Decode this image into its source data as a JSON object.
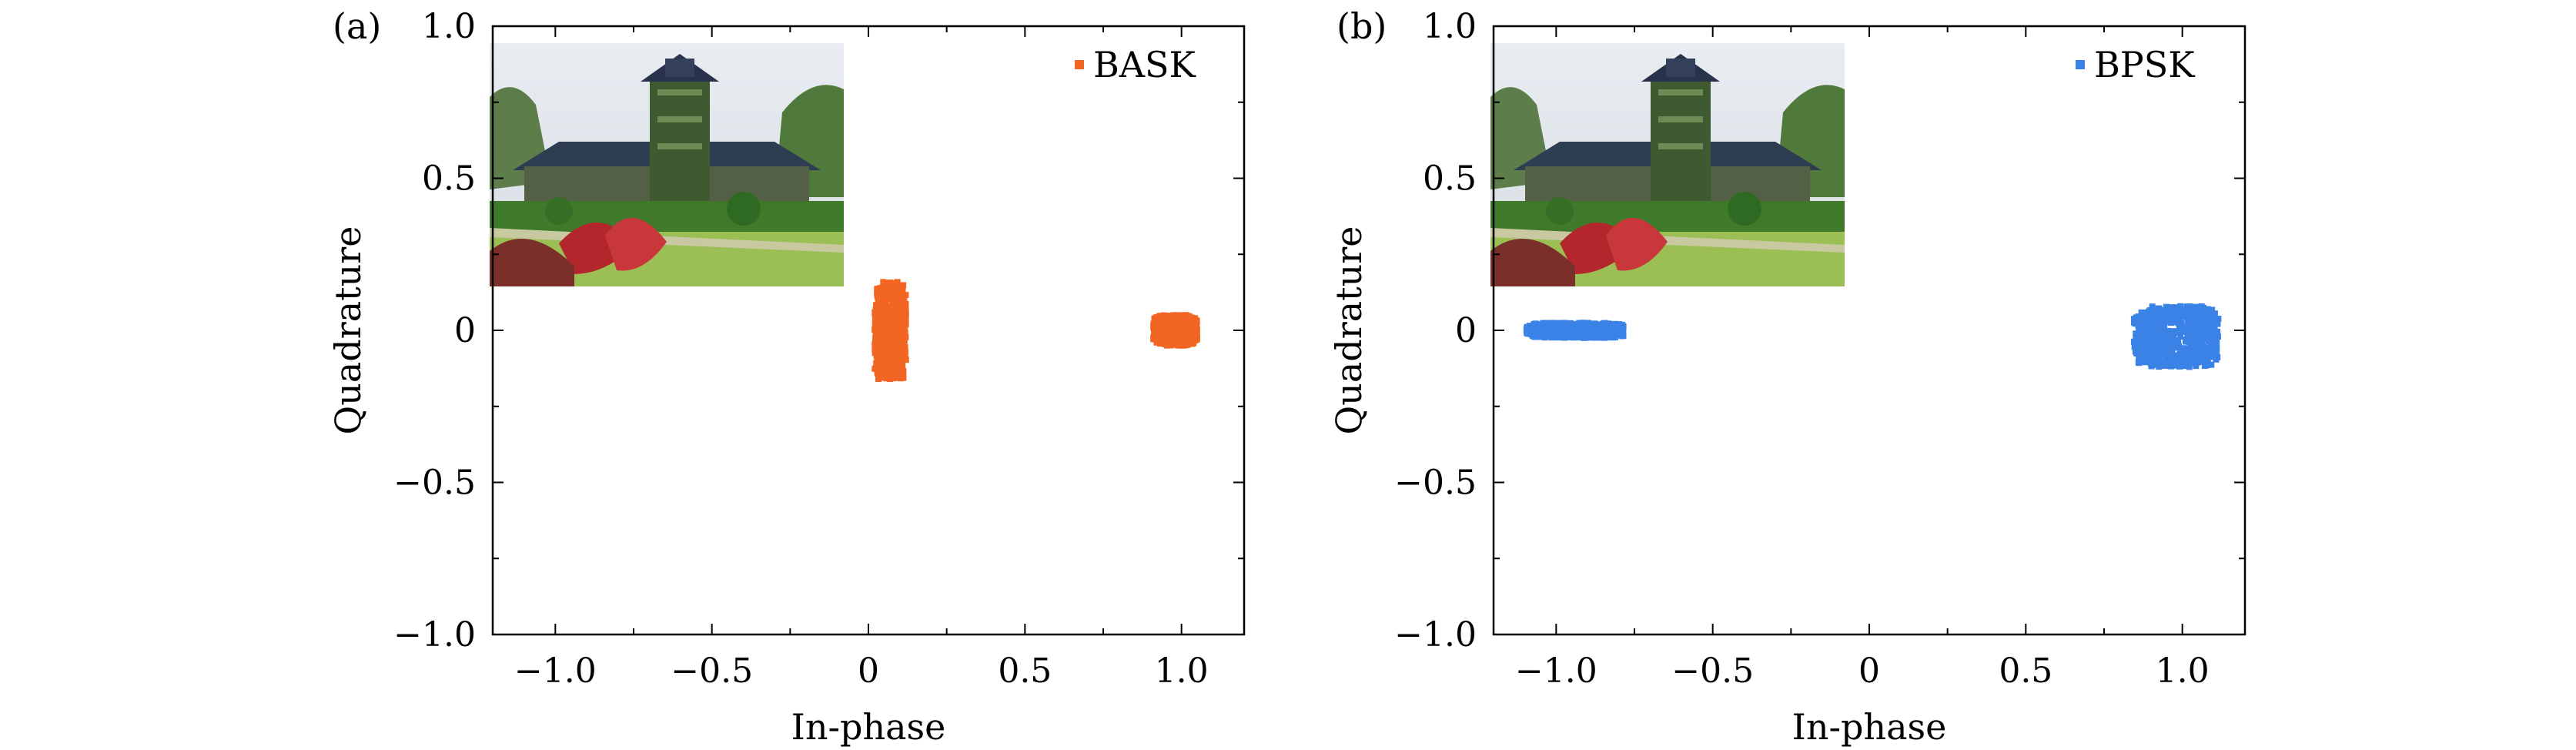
{
  "chart_data": [
    {
      "panel_label": "(a)",
      "type": "scatter",
      "xlabel": "In-phase",
      "ylabel": "Quadrature",
      "xlim": [
        -1.2,
        1.2
      ],
      "ylim": [
        -1.0,
        1.0
      ],
      "xticks": [
        -1.0,
        -0.5,
        0,
        0.5,
        1.0
      ],
      "yticks": [
        -1.0,
        -0.5,
        0,
        0.5,
        1.0
      ],
      "xtick_labels": [
        "−1.0",
        "−0.5",
        "0",
        "0.5",
        "1.0"
      ],
      "ytick_labels": [
        "−1.0",
        "−0.5",
        "0",
        "0.5",
        "1.0"
      ],
      "legend_position": "top-right",
      "inset_image": "campus-building-photo",
      "series": [
        {
          "name": "BASK",
          "color": "#f26522",
          "clusters": [
            {
              "x": 0.07,
              "y": 0.0,
              "spread_x": 0.1,
              "spread_y": 0.32
            },
            {
              "x": 0.98,
              "y": 0.0,
              "spread_x": 0.14,
              "spread_y": 0.1
            }
          ]
        }
      ]
    },
    {
      "panel_label": "(b)",
      "type": "scatter",
      "xlabel": "In-phase",
      "ylabel": "Quadrature",
      "xlim": [
        -1.2,
        1.2
      ],
      "ylim": [
        -1.0,
        1.0
      ],
      "xticks": [
        -1.0,
        -0.5,
        0,
        0.5,
        1.0
      ],
      "yticks": [
        -1.0,
        -0.5,
        0,
        0.5,
        1.0
      ],
      "xtick_labels": [
        "−1.0",
        "−0.5",
        "0",
        "0.5",
        "1.0"
      ],
      "ytick_labels": [
        "−1.0",
        "−0.5",
        "0",
        "0.5",
        "1.0"
      ],
      "legend_position": "top-right",
      "inset_image": "campus-building-photo",
      "series": [
        {
          "name": "BPSK",
          "color": "#3b82e6",
          "clusters": [
            {
              "x": -0.94,
              "y": 0.0,
              "spread_x": 0.31,
              "spread_y": 0.05
            },
            {
              "x": 0.98,
              "y": -0.02,
              "spread_x": 0.27,
              "spread_y": 0.2
            }
          ]
        }
      ]
    }
  ]
}
